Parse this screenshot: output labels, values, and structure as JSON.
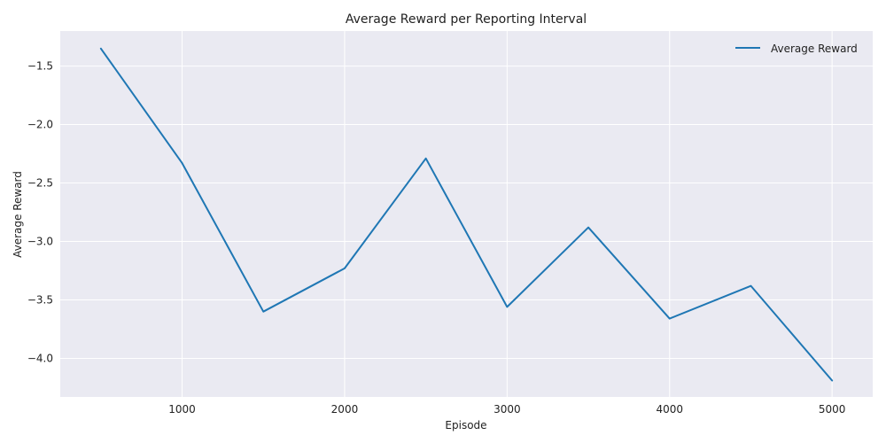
{
  "chart_data": {
    "type": "line",
    "title": "Average Reward per Reporting Interval",
    "xlabel": "Episode",
    "ylabel": "Average Reward",
    "xlim": [
      250,
      5250
    ],
    "ylim": [
      -4.33,
      -1.2
    ],
    "xticks": [
      1000,
      2000,
      3000,
      4000,
      5000
    ],
    "yticks": [
      -1.5,
      -2.0,
      -2.5,
      -3.0,
      -3.5,
      -4.0
    ],
    "xtick_labels": [
      "1000",
      "2000",
      "3000",
      "4000",
      "5000"
    ],
    "ytick_labels": [
      "−1.5",
      "−2.0",
      "−2.5",
      "−3.0",
      "−3.5",
      "−4.0"
    ],
    "grid": true,
    "legend_position": "top-right",
    "series": [
      {
        "name": "Average Reward",
        "color": "#1f77b4",
        "x": [
          500,
          1000,
          1500,
          2000,
          2500,
          3000,
          3500,
          4000,
          4500,
          5000
        ],
        "y": [
          -1.35,
          -2.33,
          -3.6,
          -3.23,
          -2.29,
          -3.56,
          -2.88,
          -3.66,
          -3.38,
          -4.19
        ]
      }
    ]
  }
}
